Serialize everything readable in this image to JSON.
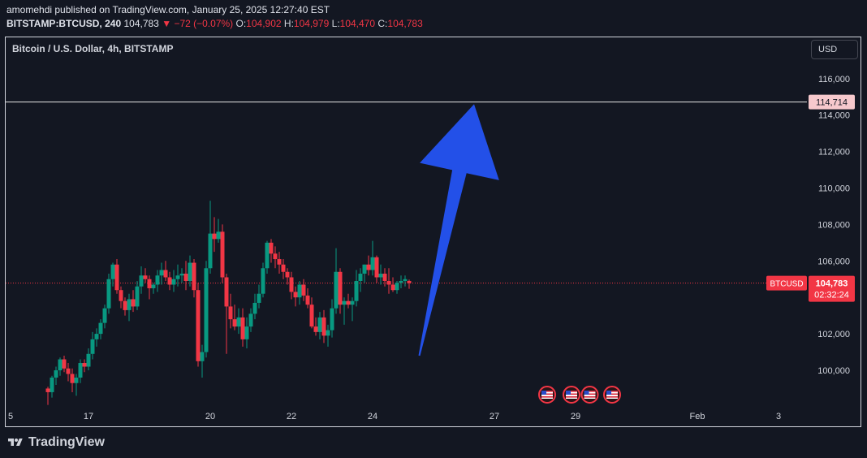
{
  "header": {
    "publisher_line": "amomehdi published on TradingView.com, January 25, 2025 12:27:40 EST",
    "symbol": "BITSTAMP:BTCUSD, 240",
    "last": "104,783",
    "arrow": "▼",
    "change": "−72 (−0.07%)",
    "o_label": "O:",
    "o_value": "104,902",
    "h_label": "H:",
    "h_value": "104,979",
    "l_label": "L:",
    "l_value": "104,470",
    "c_label": "C:",
    "c_value": "104,783"
  },
  "pane_title": "Bitcoin / U.S. Dollar, 4h, BITSTAMP",
  "currency_button": "USD",
  "price_tags": {
    "target": "114,714",
    "symbol_tag": "BTCUSD",
    "current": "104,783",
    "countdown": "02:32:24"
  },
  "footer": {
    "brand": "TradingView"
  },
  "colors": {
    "background": "#131722",
    "up": "#089981",
    "down": "#f23645",
    "arrow": "#2350e8",
    "target_line": "#e6e6e6",
    "target_tag_bg": "#f7c9cd",
    "text": "#d1d4dc"
  },
  "chart_data": {
    "type": "candlestick",
    "title": "Bitcoin / U.S. Dollar, 4h, BITSTAMP",
    "x_tick_labels": [
      "5",
      "17",
      "20",
      "22",
      "24",
      "27",
      "29",
      "Feb",
      "3"
    ],
    "y_tick_labels": [
      "100,000",
      "102,000",
      "104,000",
      "106,000",
      "108,000",
      "110,000",
      "112,000",
      "114,000",
      "116,000"
    ],
    "ylim": [
      98000,
      117200
    ],
    "grid": false,
    "horizontal_line": 114714,
    "last_price_line": 104783,
    "arrow": {
      "from": {
        "time": 25.15,
        "price": 100800
      },
      "to": {
        "time": 26.5,
        "price": 114600
      }
    },
    "event_markers": [
      28.3,
      28.9,
      29.35,
      29.9
    ],
    "candles": [
      [
        16.0,
        99,
        99.1,
        98.1,
        98.8
      ],
      [
        16.1,
        98.8,
        99.7,
        98.5,
        99.6
      ],
      [
        16.2,
        99.6,
        100.2,
        99.2,
        100
      ],
      [
        16.3,
        100,
        100.7,
        99.7,
        100.6
      ],
      [
        16.4,
        100.6,
        100.8,
        99.9,
        100.1
      ],
      [
        16.5,
        100.1,
        100.4,
        99.4,
        99.8
      ],
      [
        16.6,
        99.8,
        100.1,
        98.8,
        99.3
      ],
      [
        16.7,
        99.3,
        99.8,
        98.6,
        99.6
      ],
      [
        16.8,
        99.6,
        100.6,
        99.3,
        100.4
      ],
      [
        16.9,
        100.4,
        100.6,
        99.9,
        100.2
      ],
      [
        17.0,
        100.2,
        101.2,
        100,
        100.9
      ],
      [
        17.1,
        100.9,
        102.1,
        100.6,
        101.7
      ],
      [
        17.2,
        101.7,
        102.3,
        101.3,
        102
      ],
      [
        17.3,
        102,
        102.8,
        101.7,
        102.6
      ],
      [
        17.4,
        102.6,
        103.6,
        102.3,
        103.4
      ],
      [
        17.5,
        103.4,
        105.3,
        103.1,
        105
      ],
      [
        17.6,
        105,
        105.9,
        104.6,
        105.8
      ],
      [
        17.7,
        105.8,
        106.1,
        104.2,
        104.4
      ],
      [
        17.8,
        104.4,
        104.6,
        103.4,
        103.8
      ],
      [
        17.9,
        103.8,
        104,
        103,
        103.3
      ],
      [
        18.0,
        103.3,
        104.2,
        102.7,
        103.9
      ],
      [
        18.1,
        103.9,
        104.4,
        103.2,
        103.5
      ],
      [
        18.2,
        103.5,
        104.9,
        103.3,
        104.6
      ],
      [
        18.3,
        104.6,
        105.7,
        104.2,
        105.2
      ],
      [
        18.4,
        105.2,
        105.6,
        104.8,
        105
      ],
      [
        18.5,
        105,
        105.2,
        103.9,
        104.5
      ],
      [
        18.6,
        104.5,
        104.8,
        104.2,
        104.7
      ],
      [
        18.7,
        104.7,
        105.5,
        104.3,
        105.2
      ],
      [
        18.8,
        105.2,
        105.9,
        104.7,
        105.5
      ],
      [
        18.9,
        105.5,
        106,
        104.9,
        105.1
      ],
      [
        19.0,
        105.1,
        105.4,
        104.4,
        104.7
      ],
      [
        19.1,
        104.7,
        105.5,
        104.3,
        105
      ],
      [
        19.2,
        105,
        105.8,
        104.6,
        105.2
      ],
      [
        19.3,
        105.2,
        105.6,
        104.8,
        105.3
      ],
      [
        19.4,
        105.3,
        106,
        104.4,
        104.9
      ],
      [
        19.5,
        104.9,
        106.3,
        104.6,
        105.9
      ],
      [
        19.6,
        105.9,
        106.1,
        104,
        104.4
      ],
      [
        19.7,
        104.4,
        104.8,
        100.2,
        100.5
      ],
      [
        19.8,
        100.5,
        101.4,
        99.6,
        101
      ],
      [
        19.9,
        101,
        106,
        100.7,
        105.6
      ],
      [
        20.0,
        105.6,
        109.3,
        105.3,
        107.5
      ],
      [
        20.1,
        107.5,
        108.4,
        106.5,
        107.2
      ],
      [
        20.2,
        107.2,
        108.3,
        107,
        107.6
      ],
      [
        20.3,
        107.6,
        108,
        104.8,
        105.1
      ],
      [
        20.4,
        105.1,
        105.3,
        100.9,
        103.5
      ],
      [
        20.5,
        103.5,
        104.2,
        102.3,
        102.8
      ],
      [
        20.6,
        102.8,
        103.6,
        102.2,
        102.4
      ],
      [
        20.7,
        102.4,
        103.4,
        102,
        102.9
      ],
      [
        20.8,
        102.9,
        103.4,
        101.3,
        101.7
      ],
      [
        20.9,
        101.7,
        102.9,
        101.2,
        102.4
      ],
      [
        21.0,
        102.4,
        103.4,
        102.1,
        103.1
      ],
      [
        21.1,
        103.1,
        104.2,
        102.8,
        103.7
      ],
      [
        21.2,
        103.7,
        104.7,
        103.4,
        104.2
      ],
      [
        21.3,
        104.2,
        105.9,
        104,
        105.6
      ],
      [
        21.4,
        105.6,
        107.1,
        105.3,
        107
      ],
      [
        21.5,
        107,
        107.2,
        105.9,
        106.4
      ],
      [
        21.6,
        106.4,
        106.8,
        105.6,
        106.1
      ],
      [
        21.7,
        106.1,
        106.5,
        105.3,
        105.8
      ],
      [
        21.8,
        105.8,
        106.1,
        105,
        105.4
      ],
      [
        21.9,
        105.4,
        105.6,
        104.7,
        105.1
      ],
      [
        22.0,
        105.1,
        105.4,
        103.9,
        104.3
      ],
      [
        22.1,
        104.3,
        104.6,
        103.5,
        104
      ],
      [
        22.2,
        104,
        104.9,
        103.6,
        104.7
      ],
      [
        22.3,
        104.7,
        105,
        103.8,
        104.1
      ],
      [
        22.4,
        104.1,
        104.5,
        103.4,
        103.6
      ],
      [
        22.5,
        103.6,
        104,
        102.3,
        102.4
      ],
      [
        22.6,
        102.4,
        102.9,
        101.9,
        102.1
      ],
      [
        22.7,
        102.1,
        103.2,
        101.7,
        102.9
      ],
      [
        22.8,
        102.9,
        103.3,
        101.5,
        101.9
      ],
      [
        22.9,
        101.9,
        102.5,
        101.3,
        102.2
      ],
      [
        23.0,
        102.2,
        103.9,
        101.8,
        103.4
      ],
      [
        23.1,
        103.4,
        106.7,
        103.1,
        105.4
      ],
      [
        23.2,
        105.4,
        105.6,
        103.1,
        103.6
      ],
      [
        23.3,
        103.6,
        104,
        102.5,
        103.8
      ],
      [
        23.4,
        103.8,
        104.2,
        103.4,
        103.6
      ],
      [
        23.5,
        103.6,
        104,
        102.7,
        103.8
      ],
      [
        23.6,
        103.8,
        105.5,
        103.5,
        104.9
      ],
      [
        23.7,
        104.9,
        105.6,
        104.3,
        105.3
      ],
      [
        23.8,
        105.3,
        105.8,
        104.8,
        105.8
      ],
      [
        23.9,
        105.8,
        106.3,
        105.2,
        105.5
      ],
      [
        24.0,
        105.5,
        107.1,
        105.2,
        106.2
      ],
      [
        24.1,
        106.2,
        106.3,
        104.8,
        105.1
      ],
      [
        24.2,
        105.1,
        105.8,
        104.7,
        105.3
      ],
      [
        24.3,
        105.3,
        105.6,
        104.6,
        104.9
      ],
      [
        24.4,
        104.9,
        105.6,
        104.2,
        104.7
      ],
      [
        24.5,
        104.7,
        105.1,
        104.3,
        104.4
      ],
      [
        24.6,
        104.4,
        104.9,
        104.2,
        104.8
      ],
      [
        24.7,
        104.8,
        105.2,
        104.5,
        104.9
      ],
      [
        24.8,
        104.9,
        105.2,
        104.6,
        105
      ],
      [
        24.9,
        104.902,
        104.979,
        104.47,
        104.783
      ]
    ]
  }
}
